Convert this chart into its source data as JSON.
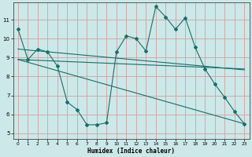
{
  "title": "",
  "xlabel": "Humidex (Indice chaleur)",
  "ylabel": "",
  "bg_color": "#cce8e8",
  "line_color": "#1a6e6a",
  "grid_color": "#d4a0a0",
  "xlim": [
    -0.5,
    23.5
  ],
  "ylim": [
    4.7,
    11.9
  ],
  "yticks": [
    5,
    6,
    7,
    8,
    9,
    10,
    11
  ],
  "xticks": [
    0,
    1,
    2,
    3,
    4,
    5,
    6,
    7,
    8,
    9,
    10,
    11,
    12,
    13,
    14,
    15,
    16,
    17,
    18,
    19,
    20,
    21,
    22,
    23
  ],
  "series1_x": [
    0,
    1,
    2,
    3,
    4,
    5,
    6,
    7,
    8,
    9,
    10,
    11,
    12,
    13,
    14,
    15,
    16,
    17,
    18,
    19,
    20,
    21,
    22,
    23
  ],
  "series1_y": [
    10.5,
    8.9,
    9.45,
    9.3,
    8.55,
    6.65,
    6.25,
    5.45,
    5.45,
    5.55,
    9.3,
    10.15,
    10.0,
    9.35,
    11.7,
    11.15,
    10.5,
    11.1,
    9.55,
    8.4,
    7.6,
    6.9,
    6.15,
    5.5
  ],
  "line2_x": [
    0,
    23
  ],
  "line2_y": [
    8.9,
    8.4
  ],
  "line3_x": [
    0,
    23
  ],
  "line3_y": [
    9.45,
    8.35
  ],
  "line4_x": [
    0,
    23
  ],
  "line4_y": [
    8.9,
    5.5
  ]
}
